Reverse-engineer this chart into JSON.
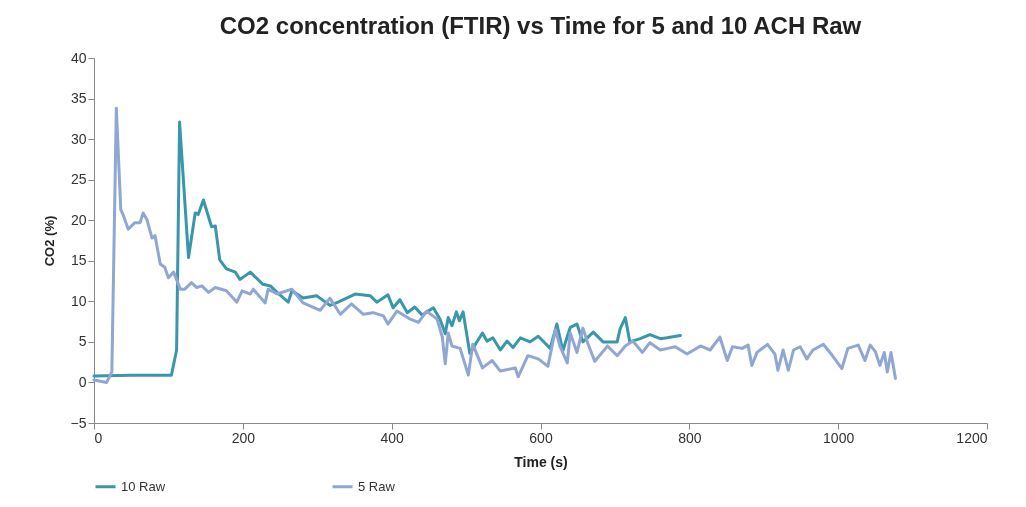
{
  "chart_data": {
    "type": "line",
    "title": "CO2 concentration (FTIR) vs Time for 5 and 10 ACH Raw",
    "xlabel": "Time (s)",
    "ylabel": "CO2 (%)",
    "xlim": [
      0,
      1200
    ],
    "ylim": [
      -5,
      40
    ],
    "xticks": [
      0,
      200,
      400,
      600,
      800,
      1000,
      1200
    ],
    "yticks": [
      -5,
      0,
      5,
      10,
      15,
      20,
      25,
      30,
      35,
      40
    ],
    "legend": "bottom",
    "series": [
      {
        "name": "10 Raw",
        "color": "#3a96aa",
        "x": [
          0,
          50,
          100,
          104,
          111,
          115,
          127,
          136,
          140,
          147,
          158,
          163,
          169,
          178,
          190,
          196,
          210,
          227,
          237,
          246,
          261,
          266,
          281,
          299,
          317,
          328,
          351,
          371,
          380,
          395,
          402,
          411,
          421,
          431,
          441,
          456,
          465,
          472,
          476,
          481,
          487,
          491,
          496,
          505,
          522,
          528,
          536,
          546,
          555,
          563,
          573,
          586,
          597,
          613,
          622,
          630,
          640,
          649,
          657,
          671,
          684,
          703,
          707,
          714,
          720,
          734,
          747,
          761,
          770,
          788
        ],
        "values": [
          0.8,
          0.9,
          0.9,
          0.9,
          4,
          32.1,
          15.4,
          20.9,
          20.7,
          22.5,
          19.2,
          19.3,
          15.1,
          14,
          13.6,
          12.7,
          13.6,
          12.1,
          11.9,
          11.1,
          9.9,
          11.3,
          10.4,
          10.7,
          9.5,
          9.9,
          10.9,
          10.7,
          9.9,
          10.8,
          9.2,
          10.2,
          8.6,
          9.3,
          8.3,
          9.2,
          7.8,
          6,
          8,
          7,
          8.7,
          7.6,
          8.7,
          3.6,
          6.1,
          5.1,
          5.5,
          4,
          5.1,
          4.3,
          5.5,
          5,
          5.7,
          4.2,
          7.2,
          3.9,
          6.8,
          7.2,
          5,
          6.2,
          5,
          5,
          6.6,
          8,
          5,
          5.4,
          5.9,
          5.4,
          5.5,
          5.8
        ]
      },
      {
        "name": "5 Raw",
        "color": "#8fa7d2",
        "x": [
          0,
          17,
          24,
          30,
          36,
          39,
          46,
          55,
          62,
          66,
          71,
          78,
          82,
          89,
          95,
          100,
          107,
          116,
          122,
          131,
          138,
          145,
          154,
          163,
          178,
          192,
          199,
          210,
          214,
          230,
          234,
          246,
          266,
          281,
          304,
          317,
          331,
          346,
          362,
          375,
          389,
          395,
          407,
          425,
          436,
          447,
          461,
          468,
          472,
          476,
          481,
          492,
          503,
          509,
          522,
          535,
          546,
          566,
          570,
          583,
          597,
          610,
          620,
          626,
          636,
          640,
          649,
          657,
          664,
          673,
          690,
          703,
          714,
          724,
          737,
          747,
          761,
          771,
          781,
          797,
          815,
          828,
          841,
          851,
          858,
          871,
          879,
          884,
          891,
          905,
          915,
          919,
          926,
          933,
          940,
          949,
          958,
          966,
          980,
          989,
          1005,
          1013,
          1027,
          1036,
          1043,
          1050,
          1056,
          1062,
          1066,
          1071,
          1077
        ],
        "values": [
          0.3,
          0,
          1.3,
          33.8,
          21.3,
          20.7,
          18.9,
          19.7,
          19.7,
          20.9,
          20.1,
          17.8,
          18.1,
          14.6,
          14.2,
          12.9,
          13.6,
          11.5,
          11.5,
          12.3,
          11.7,
          11.9,
          11.1,
          11.7,
          11.3,
          9.9,
          11.3,
          10.9,
          11.5,
          9.8,
          11.5,
          10.9,
          11.5,
          9.8,
          8.9,
          10.4,
          8.4,
          9.7,
          8.4,
          8.6,
          8.2,
          7.2,
          8.8,
          7.8,
          7.4,
          8.8,
          7.8,
          5.6,
          2.3,
          6.1,
          4.5,
          4.2,
          0.9,
          4.7,
          1.8,
          2.7,
          1.4,
          1.8,
          0.7,
          3.3,
          2.9,
          2,
          6.5,
          4.5,
          2.4,
          6.1,
          3.7,
          6.7,
          4.7,
          2.6,
          4.5,
          3.3,
          4.5,
          5.1,
          3.7,
          4.9,
          4,
          4.2,
          4.4,
          3.5,
          4.5,
          4,
          5.6,
          2.7,
          4.4,
          4.2,
          4.6,
          2.1,
          3.7,
          4.7,
          3.5,
          1.5,
          4,
          1.5,
          4,
          4.4,
          2.9,
          4,
          4.7,
          3.7,
          1.7,
          4.2,
          4.6,
          2.7,
          4.6,
          3.8,
          2.1,
          3.7,
          1.3,
          3.7,
          0.5
        ]
      }
    ]
  }
}
